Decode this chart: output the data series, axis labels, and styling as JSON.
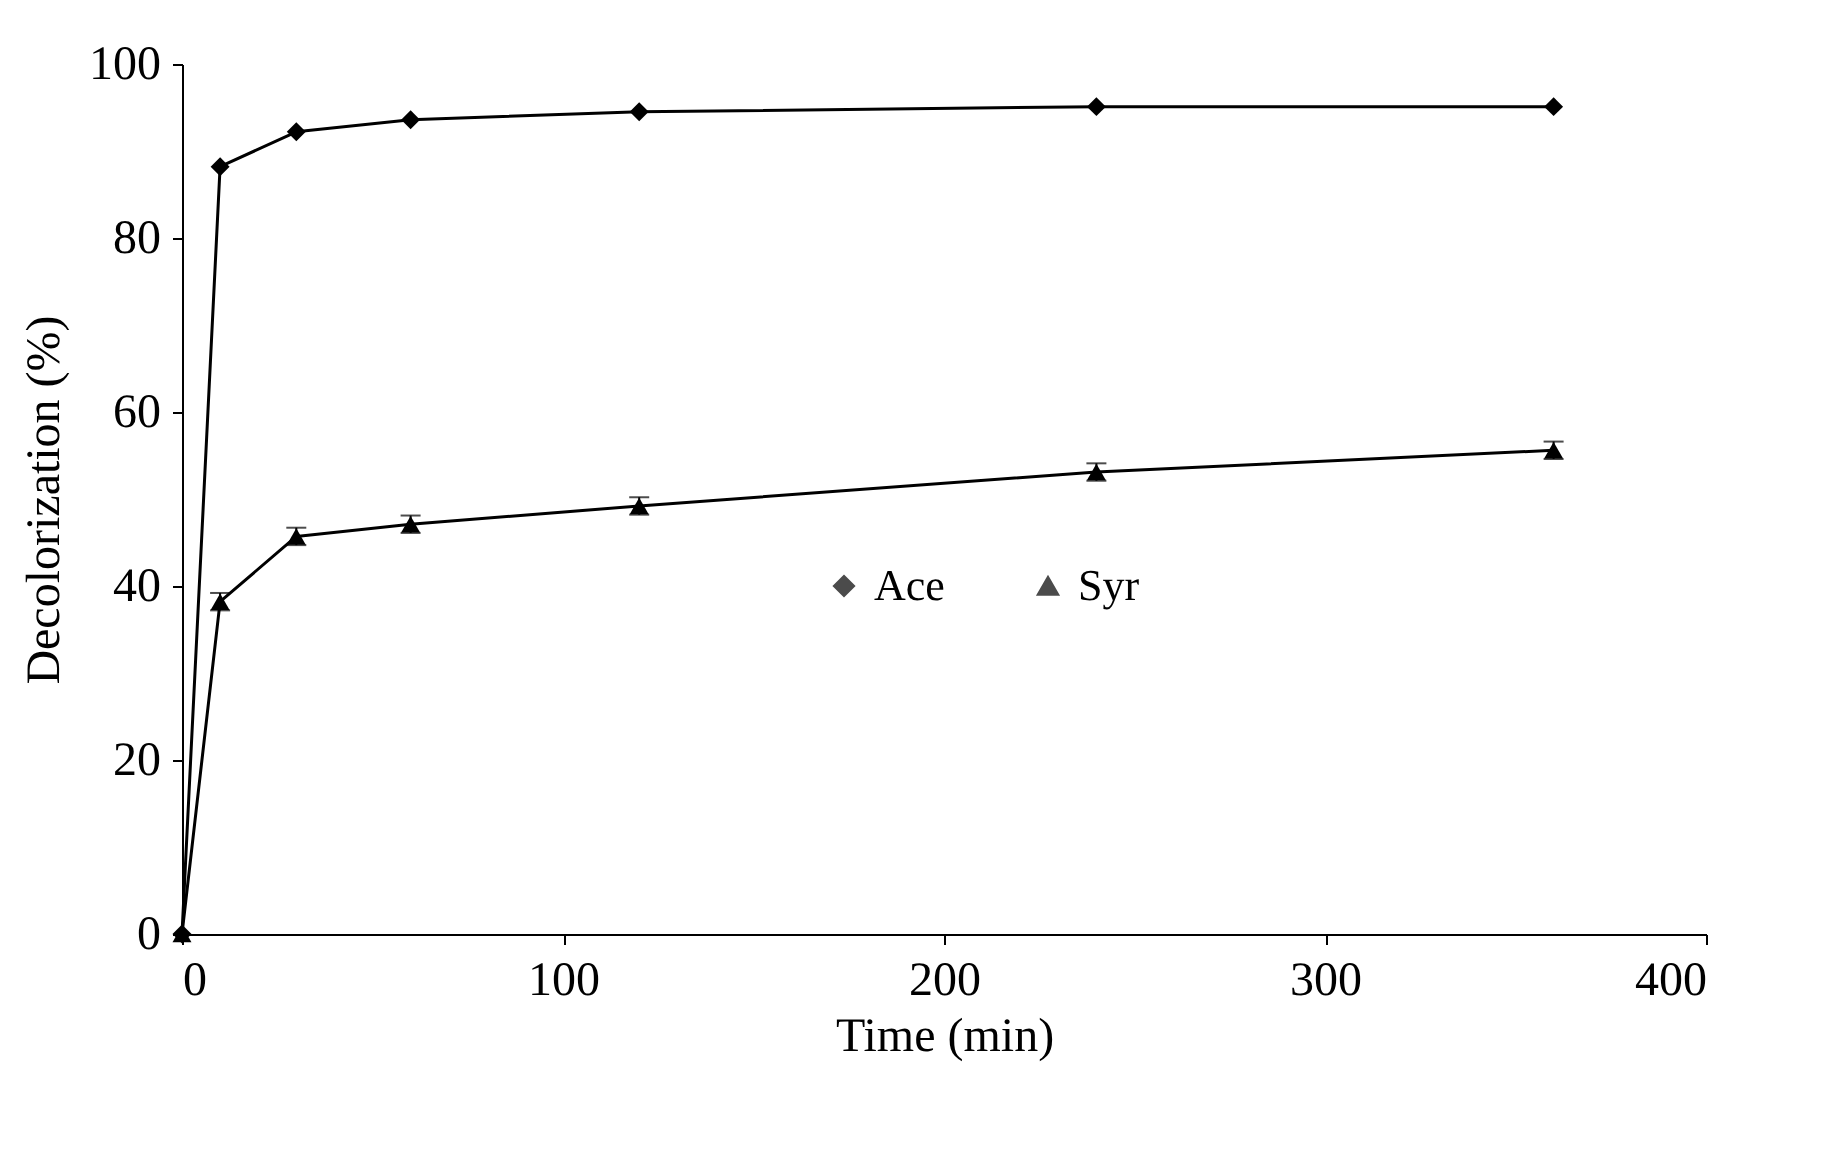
{
  "chart_data": {
    "type": "line",
    "xlabel": "Time (min)",
    "ylabel": "Decolorization (%)",
    "xlim": [
      0,
      400
    ],
    "xticks": [
      0,
      100,
      200,
      300,
      400
    ],
    "ylim": [
      0,
      100
    ],
    "yticks": [
      0,
      20,
      40,
      60,
      80,
      100
    ],
    "x": [
      0,
      10,
      30,
      60,
      120,
      240,
      360
    ],
    "series": [
      {
        "name": "Ace",
        "color": "#000000",
        "marker": "diamond",
        "values": [
          0,
          88.2,
          92.2,
          93.6,
          94.5,
          95.1,
          95.1
        ]
      },
      {
        "name": "Syr",
        "color": "#000000",
        "marker": "triangle",
        "values": [
          0,
          38.2,
          45.7,
          47.1,
          49.2,
          53.1,
          55.6
        ],
        "errors": [
          null,
          1,
          1,
          1,
          1,
          1,
          1
        ]
      }
    ],
    "grid": false,
    "legend": "right",
    "line_style": "solid"
  }
}
